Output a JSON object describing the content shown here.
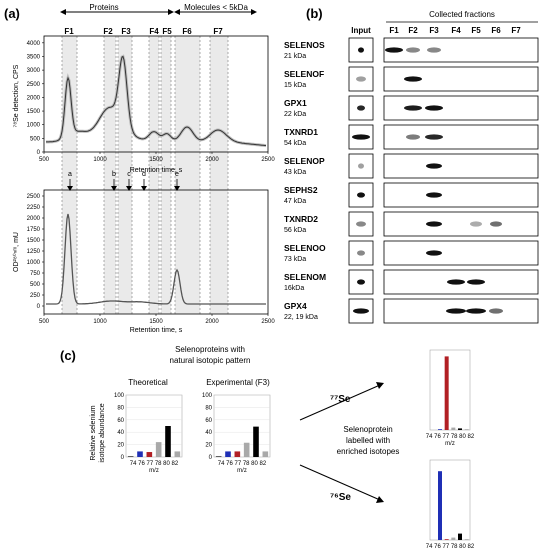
{
  "panel_a": {
    "label": "(a)",
    "groups": {
      "proteins": "Proteins",
      "molecules": "Molecules < 5kDa"
    },
    "fractions": [
      "F1",
      "F2",
      "F3",
      "F4",
      "F5",
      "F6",
      "F7"
    ],
    "top_ylabel": "⁷⁸Se detection, CPS",
    "top_yticks": [
      "0",
      "500",
      "1000",
      "1500",
      "2000",
      "2500",
      "3000",
      "3500",
      "4000"
    ],
    "xticks": [
      "500",
      "1000",
      "1500",
      "2000",
      "2500"
    ],
    "mid_xlabel": "Retention time, s",
    "peak_labels": [
      "a",
      "b",
      "c",
      "d",
      "e"
    ],
    "bottom_ylabel": "OD²⁸⁰ⁿᵐ, mU",
    "bottom_yticks": [
      "0",
      "250",
      "500",
      "750",
      "1000",
      "1250",
      "1500",
      "1750",
      "2000",
      "2250",
      "2500"
    ],
    "bottom_xlabel": "Retention time, s"
  },
  "panel_b": {
    "label": "(b)",
    "header": "Collected fractions",
    "input": "Input",
    "lanes": [
      "F1",
      "F2",
      "F3",
      "F4",
      "F5",
      "F6",
      "F7"
    ],
    "proteins": [
      {
        "name": "SELENOS",
        "kda": "21 kDa"
      },
      {
        "name": "SELENOF",
        "kda": "15 kDa"
      },
      {
        "name": "GPX1",
        "kda": "22 kDa"
      },
      {
        "name": "TXNRD1",
        "kda": "54 kDa"
      },
      {
        "name": "SELENOP",
        "kda": "43 kDa"
      },
      {
        "name": "SEPHS2",
        "kda": "47 kDa"
      },
      {
        "name": "TXNRD2",
        "kda": "56 kDa"
      },
      {
        "name": "SELENOO",
        "kda": "73 kDa"
      },
      {
        "name": "SELENOM",
        "kda": "16kDa"
      },
      {
        "name": "GPX4",
        "kda": "22, 19 kDa"
      }
    ]
  },
  "panel_c": {
    "label": "(c)",
    "title_line1": "Selenoproteins with",
    "title_line2": "natural isotopic pattern",
    "theoretical": "Theoretical",
    "experimental": "Experimental (F3)",
    "ylabel_line1": "Relative selenium",
    "ylabel_line2": "isotope abundance",
    "yticks": [
      "0",
      "20",
      "40",
      "60",
      "80",
      "100"
    ],
    "isotopes": "74 76 77 78 80 82",
    "mz": "m/z",
    "se77": "⁷⁷Se",
    "se76": "⁷⁶Se",
    "labelled_line1": "Selenoprotein",
    "labelled_line2": "labelled with",
    "labelled_line3": "enriched isotopes",
    "colors": {
      "blue": "#1f2fb5",
      "red": "#b21f24",
      "gray": "#a9a9a9",
      "black": "#000000"
    }
  },
  "chart_data": [
    {
      "type": "bar",
      "title": "Theoretical",
      "categories": [
        "74",
        "76",
        "77",
        "78",
        "80",
        "82"
      ],
      "values": [
        1,
        9,
        8,
        24,
        50,
        9
      ],
      "ylim": [
        0,
        100
      ]
    },
    {
      "type": "bar",
      "title": "Experimental (F3)",
      "categories": [
        "74",
        "76",
        "77",
        "78",
        "80",
        "82"
      ],
      "values": [
        1,
        9,
        9,
        23,
        49,
        9
      ],
      "ylim": [
        0,
        100
      ]
    },
    {
      "type": "bar",
      "categories": [
        "74",
        "76",
        "77",
        "78",
        "80",
        "82"
      ],
      "values": [
        0,
        1,
        92,
        3,
        2,
        1
      ],
      "ylim": [
        0,
        100
      ]
    },
    {
      "type": "bar",
      "categories": [
        "74",
        "76",
        "77",
        "78",
        "80",
        "82"
      ],
      "values": [
        0,
        86,
        1,
        3,
        8,
        1
      ],
      "ylim": [
        0,
        100
      ]
    }
  ]
}
